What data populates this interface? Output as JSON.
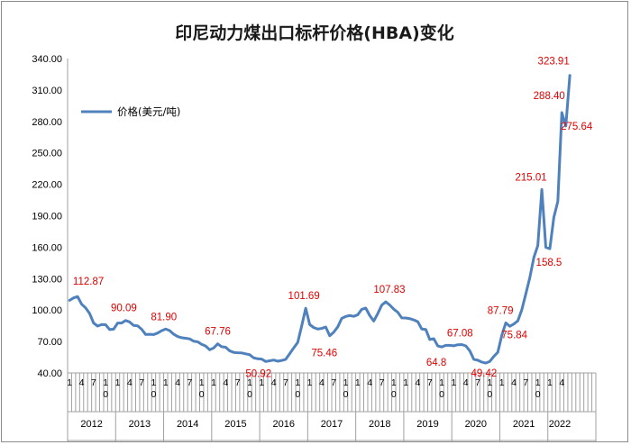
{
  "chart_data": {
    "type": "line",
    "title": "印尼动力煤出口标杆价格(HBA)变化",
    "legend": {
      "label": "价格(美元/吨)",
      "position": "top-left",
      "color": "#4f81bd"
    },
    "ylim": [
      40,
      340
    ],
    "yticks": [
      "40.00",
      "70.00",
      "100.00",
      "130.00",
      "160.00",
      "190.00",
      "220.00",
      "250.00",
      "280.00",
      "310.00",
      "340.00"
    ],
    "grid": {
      "y": false,
      "x": false
    },
    "x_month_ticks": [
      "1",
      "4",
      "7",
      "10"
    ],
    "years": [
      "2012",
      "2013",
      "2014",
      "2015",
      "2016",
      "2017",
      "2018",
      "2019",
      "2020",
      "2021",
      "2022"
    ],
    "series": [
      {
        "name": "价格(美元/吨)",
        "color": "#4f81bd",
        "x": [
          "2012-01",
          "2012-02",
          "2012-03",
          "2012-04",
          "2012-05",
          "2012-06",
          "2012-07",
          "2012-08",
          "2012-09",
          "2012-10",
          "2012-11",
          "2012-12",
          "2013-01",
          "2013-02",
          "2013-03",
          "2013-04",
          "2013-05",
          "2013-06",
          "2013-07",
          "2013-08",
          "2013-09",
          "2013-10",
          "2013-11",
          "2013-12",
          "2014-01",
          "2014-02",
          "2014-03",
          "2014-04",
          "2014-05",
          "2014-06",
          "2014-07",
          "2014-08",
          "2014-09",
          "2014-10",
          "2014-11",
          "2014-12",
          "2015-01",
          "2015-02",
          "2015-03",
          "2015-04",
          "2015-05",
          "2015-06",
          "2015-07",
          "2015-08",
          "2015-09",
          "2015-10",
          "2015-11",
          "2015-12",
          "2016-01",
          "2016-02",
          "2016-03",
          "2016-04",
          "2016-05",
          "2016-06",
          "2016-07",
          "2016-08",
          "2016-09",
          "2016-10",
          "2016-11",
          "2016-12",
          "2017-01",
          "2017-02",
          "2017-03",
          "2017-04",
          "2017-05",
          "2017-06",
          "2017-07",
          "2017-08",
          "2017-09",
          "2017-10",
          "2017-11",
          "2017-12",
          "2018-01",
          "2018-02",
          "2018-03",
          "2018-04",
          "2018-05",
          "2018-06",
          "2018-07",
          "2018-08",
          "2018-09",
          "2018-10",
          "2018-11",
          "2018-12",
          "2019-01",
          "2019-02",
          "2019-03",
          "2019-04",
          "2019-05",
          "2019-06",
          "2019-07",
          "2019-08",
          "2019-09",
          "2019-10",
          "2019-11",
          "2019-12",
          "2020-01",
          "2020-02",
          "2020-03",
          "2020-04",
          "2020-05",
          "2020-06",
          "2020-07",
          "2020-08",
          "2020-09",
          "2020-10",
          "2020-11",
          "2020-12",
          "2021-01",
          "2021-02",
          "2021-03",
          "2021-04",
          "2021-05",
          "2021-06",
          "2021-07",
          "2021-08",
          "2021-09",
          "2021-10",
          "2021-11",
          "2021-12",
          "2022-01",
          "2022-02",
          "2022-03",
          "2022-04",
          "2022-05",
          "2022-06"
        ],
        "values": [
          109.3,
          111.6,
          112.87,
          105.6,
          102.1,
          96.7,
          87.6,
          84.7,
          86.2,
          86.0,
          81.4,
          81.8,
          87.6,
          87.6,
          90.09,
          88.6,
          85.3,
          84.9,
          81.7,
          76.7,
          76.9,
          76.6,
          78.1,
          80.3,
          81.9,
          80.4,
          77.0,
          74.8,
          73.6,
          73.1,
          72.5,
          70.3,
          69.7,
          67.3,
          65.7,
          62.1,
          63.8,
          67.76,
          65.0,
          64.5,
          61.1,
          59.6,
          59.2,
          59.1,
          58.2,
          57.4,
          54.4,
          53.5,
          53.2,
          50.92,
          51.6,
          52.3,
          51.2,
          51.9,
          53.0,
          58.4,
          63.9,
          69.1,
          84.9,
          101.69,
          86.2,
          83.3,
          81.9,
          82.5,
          83.8,
          75.46,
          78.9,
          83.9,
          92.0,
          93.9,
          94.8,
          94.0,
          95.5,
          100.7,
          101.9,
          94.8,
          89.5,
          96.6,
          104.7,
          107.83,
          104.8,
          100.9,
          97.9,
          92.5,
          92.4,
          91.8,
          90.6,
          88.9,
          81.9,
          81.5,
          71.9,
          72.7,
          65.8,
          64.8,
          66.3,
          66.3,
          65.9,
          66.9,
          67.08,
          65.8,
          61.1,
          52.98,
          52.16,
          50.34,
          49.42,
          51.0,
          55.7,
          59.7,
          75.84,
          87.79,
          84.5,
          86.7,
          89.7,
          100.3,
          115.4,
          130.9,
          150.0,
          161.6,
          215.01,
          159.8,
          158.5,
          188.4,
          203.69,
          288.4,
          275.64,
          323.91
        ]
      }
    ],
    "annotations": [
      "112.87",
      "90.09",
      "81.90",
      "67.76",
      "50.92",
      "101.69",
      "75.46",
      "107.83",
      "64.8",
      "67.08",
      "49.42",
      "87.79",
      "75.84",
      "215.01",
      "158.5",
      "288.40",
      "275.64",
      "323.91"
    ]
  }
}
